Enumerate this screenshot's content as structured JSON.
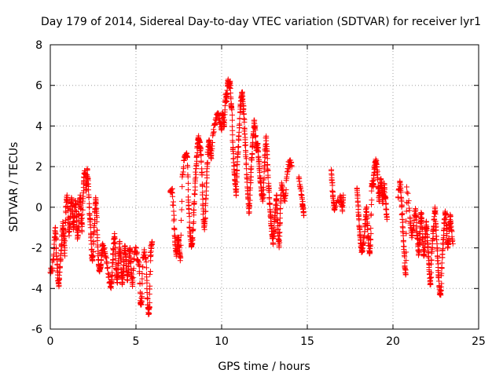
{
  "chart_data": {
    "type": "scatter",
    "title": "Day 179 of 2014, Sidereal Day-to-day VTEC variation (SDTVAR) for receiver lyr1",
    "xlabel": "GPS time / hours",
    "ylabel": "SDTVAR / TECUs",
    "xlim": [
      0,
      25
    ],
    "ylim": [
      -6,
      8
    ],
    "xticks": [
      0,
      5,
      10,
      15,
      20,
      25
    ],
    "yticks": [
      -6,
      -4,
      -2,
      0,
      2,
      4,
      6,
      8
    ],
    "grid": true,
    "marker": "plus",
    "color": "#ff0000",
    "trace": [
      [
        0.0,
        -3.2
      ],
      [
        0.1,
        -3.1
      ],
      [
        0.2,
        -2.4
      ],
      [
        0.25,
        -1.5
      ],
      [
        0.3,
        -1.0
      ],
      [
        0.35,
        -2.0
      ],
      [
        0.4,
        -2.8
      ],
      [
        0.45,
        -3.6
      ],
      [
        0.5,
        -3.9
      ],
      [
        0.55,
        -3.2
      ],
      [
        0.6,
        -2.6
      ],
      [
        0.65,
        -1.9
      ],
      [
        0.7,
        -1.2
      ],
      [
        0.75,
        -0.8
      ],
      [
        0.8,
        -1.6
      ],
      [
        0.85,
        -2.4
      ],
      [
        0.9,
        -0.2
      ],
      [
        0.95,
        0.5
      ],
      [
        1.0,
        0.3
      ],
      [
        1.05,
        -0.6
      ],
      [
        1.1,
        -1.4
      ],
      [
        1.15,
        -0.8
      ],
      [
        1.2,
        0.2
      ],
      [
        1.25,
        0.4
      ],
      [
        1.3,
        -0.3
      ],
      [
        1.35,
        -1.1
      ],
      [
        1.4,
        -0.5
      ],
      [
        1.45,
        0.3
      ],
      [
        1.5,
        0.1
      ],
      [
        1.55,
        -0.9
      ],
      [
        1.6,
        -1.5
      ],
      [
        1.65,
        -0.7
      ],
      [
        1.7,
        0.2
      ],
      [
        1.75,
        0.6
      ],
      [
        1.8,
        -0.4
      ],
      [
        1.85,
        -1.2
      ],
      [
        1.9,
        0.3
      ],
      [
        1.95,
        1.2
      ],
      [
        2.0,
        1.8
      ],
      [
        2.05,
        1.6
      ],
      [
        2.1,
        0.8
      ],
      [
        2.15,
        1.9
      ],
      [
        2.2,
        1.4
      ],
      [
        2.25,
        0.5
      ],
      [
        2.3,
        -0.4
      ],
      [
        2.35,
        -1.0
      ],
      [
        2.4,
        -2.1
      ],
      [
        2.45,
        -2.6
      ],
      [
        2.5,
        -2.2
      ],
      [
        2.55,
        -1.2
      ],
      [
        2.6,
        -0.2
      ],
      [
        2.65,
        0.4
      ],
      [
        2.7,
        -0.3
      ],
      [
        2.75,
        -1.5
      ],
      [
        2.8,
        -2.6
      ],
      [
        2.85,
        -3.1
      ],
      [
        2.9,
        -3.0
      ],
      [
        2.95,
        -2.8
      ],
      [
        3.0,
        -2.3
      ],
      [
        3.05,
        -1.9
      ],
      [
        3.15,
        -2.0
      ],
      [
        3.25,
        -2.5
      ],
      [
        3.35,
        -3.0
      ],
      [
        3.45,
        -3.7
      ],
      [
        3.55,
        -3.9
      ],
      [
        3.6,
        -3.4
      ],
      [
        3.65,
        -2.6
      ],
      [
        3.7,
        -1.8
      ],
      [
        3.75,
        -1.3
      ],
      [
        3.8,
        -2.2
      ],
      [
        3.85,
        -3.1
      ],
      [
        3.9,
        -3.7
      ],
      [
        3.95,
        -3.2
      ],
      [
        4.0,
        -2.4
      ],
      [
        4.05,
        -1.7
      ],
      [
        4.1,
        -2.5
      ],
      [
        4.15,
        -3.2
      ],
      [
        4.2,
        -3.8
      ],
      [
        4.25,
        -3.3
      ],
      [
        4.3,
        -2.6
      ],
      [
        4.35,
        -1.9
      ],
      [
        4.4,
        -2.3
      ],
      [
        4.45,
        -3.0
      ],
      [
        4.5,
        -3.6
      ],
      [
        4.55,
        -3.2
      ],
      [
        4.6,
        -2.4
      ],
      [
        4.65,
        -2.0
      ],
      [
        4.7,
        -2.7
      ],
      [
        4.75,
        -3.4
      ],
      [
        4.8,
        -3.8
      ],
      [
        4.9,
        -2.3
      ],
      [
        5.0,
        -2.0
      ],
      [
        5.1,
        -2.6
      ],
      [
        5.2,
        -2.9
      ],
      [
        5.25,
        -4.6
      ],
      [
        5.3,
        -4.8
      ],
      [
        5.35,
        -4.4
      ],
      [
        5.4,
        -2.5
      ],
      [
        5.5,
        -2.2
      ],
      [
        5.6,
        -2.7
      ],
      [
        5.65,
        -4.2
      ],
      [
        5.7,
        -5.0
      ],
      [
        5.75,
        -5.2
      ],
      [
        5.8,
        -4.7
      ],
      [
        5.85,
        -2.4
      ],
      [
        5.9,
        -1.9
      ],
      [
        5.95,
        -1.7
      ],
      [
        7.0,
        0.8
      ],
      [
        7.1,
        0.9
      ],
      [
        7.2,
        -0.2
      ],
      [
        7.25,
        -1.4
      ],
      [
        7.3,
        -1.9
      ],
      [
        7.35,
        -2.3
      ],
      [
        7.4,
        -2.1
      ],
      [
        7.45,
        -1.5
      ],
      [
        7.5,
        -1.6
      ],
      [
        7.55,
        -2.4
      ],
      [
        7.6,
        -2.5
      ],
      [
        7.7,
        1.5
      ],
      [
        7.8,
        2.3
      ],
      [
        7.9,
        2.6
      ],
      [
        8.0,
        2.5
      ],
      [
        8.05,
        0.5
      ],
      [
        8.1,
        -0.3
      ],
      [
        8.15,
        -1.2
      ],
      [
        8.2,
        -1.6
      ],
      [
        8.25,
        -1.9
      ],
      [
        8.3,
        -1.6
      ],
      [
        8.35,
        -0.8
      ],
      [
        8.4,
        0.2
      ],
      [
        8.45,
        1.0
      ],
      [
        8.5,
        1.9
      ],
      [
        8.55,
        2.5
      ],
      [
        8.6,
        3.1
      ],
      [
        8.65,
        3.4
      ],
      [
        8.7,
        3.2
      ],
      [
        8.75,
        2.9
      ],
      [
        8.8,
        2.6
      ],
      [
        8.85,
        1.6
      ],
      [
        8.9,
        0.4
      ],
      [
        8.95,
        -0.6
      ],
      [
        9.0,
        -1.1
      ],
      [
        9.05,
        -0.2
      ],
      [
        9.1,
        0.8
      ],
      [
        9.15,
        1.9
      ],
      [
        9.2,
        2.7
      ],
      [
        9.25,
        3.2
      ],
      [
        9.3,
        3.1
      ],
      [
        9.35,
        2.8
      ],
      [
        9.4,
        2.4
      ],
      [
        9.5,
        3.6
      ],
      [
        9.6,
        4.1
      ],
      [
        9.7,
        4.4
      ],
      [
        9.8,
        4.6
      ],
      [
        9.9,
        4.2
      ],
      [
        10.0,
        3.8
      ],
      [
        10.05,
        4.6
      ],
      [
        10.1,
        4.4
      ],
      [
        10.15,
        4.0
      ],
      [
        10.2,
        5.0
      ],
      [
        10.25,
        5.6
      ],
      [
        10.3,
        5.2
      ],
      [
        10.35,
        6.0
      ],
      [
        10.4,
        6.2
      ],
      [
        10.45,
        5.9
      ],
      [
        10.5,
        6.1
      ],
      [
        10.55,
        5.0
      ],
      [
        10.6,
        4.8
      ],
      [
        10.65,
        3.2
      ],
      [
        10.7,
        2.4
      ],
      [
        10.75,
        1.6
      ],
      [
        10.8,
        1.1
      ],
      [
        10.85,
        0.6
      ],
      [
        10.9,
        1.8
      ],
      [
        10.95,
        2.6
      ],
      [
        11.0,
        3.3
      ],
      [
        11.05,
        4.1
      ],
      [
        11.1,
        5.0
      ],
      [
        11.15,
        5.4
      ],
      [
        11.2,
        5.6
      ],
      [
        11.25,
        5.1
      ],
      [
        11.3,
        4.6
      ],
      [
        11.35,
        3.6
      ],
      [
        11.4,
        2.8
      ],
      [
        11.45,
        1.9
      ],
      [
        11.5,
        1.0
      ],
      [
        11.55,
        0.4
      ],
      [
        11.6,
        -0.3
      ],
      [
        11.65,
        0.6
      ],
      [
        11.7,
        1.5
      ],
      [
        11.75,
        2.4
      ],
      [
        11.8,
        3.0
      ],
      [
        11.85,
        3.6
      ],
      [
        11.9,
        4.2
      ],
      [
        11.95,
        3.9
      ],
      [
        12.0,
        3.2
      ],
      [
        12.05,
        2.8
      ],
      [
        12.1,
        3.1
      ],
      [
        12.15,
        2.5
      ],
      [
        12.2,
        1.9
      ],
      [
        12.25,
        1.4
      ],
      [
        12.3,
        1.0
      ],
      [
        12.35,
        0.6
      ],
      [
        12.4,
        0.3
      ],
      [
        12.45,
        1.2
      ],
      [
        12.5,
        2.2
      ],
      [
        12.55,
        2.9
      ],
      [
        12.6,
        3.5
      ],
      [
        12.65,
        2.6
      ],
      [
        12.7,
        1.8
      ],
      [
        12.75,
        0.9
      ],
      [
        12.8,
        0.2
      ],
      [
        12.85,
        -0.4
      ],
      [
        12.9,
        -0.9
      ],
      [
        12.95,
        -1.4
      ],
      [
        13.0,
        -1.8
      ],
      [
        13.05,
        -1.2
      ],
      [
        13.1,
        -0.6
      ],
      [
        13.15,
        0.0
      ],
      [
        13.2,
        0.6
      ],
      [
        13.25,
        -0.6
      ],
      [
        13.3,
        -1.4
      ],
      [
        13.35,
        -1.9
      ],
      [
        13.4,
        -0.8
      ],
      [
        13.45,
        0.3
      ],
      [
        13.5,
        1.2
      ],
      [
        13.6,
        0.6
      ],
      [
        13.7,
        0.3
      ],
      [
        13.8,
        1.5
      ],
      [
        13.9,
        2.1
      ],
      [
        14.0,
        2.2
      ],
      [
        14.1,
        2.0
      ],
      [
        14.5,
        1.4
      ],
      [
        14.6,
        0.9
      ],
      [
        14.7,
        0.4
      ],
      [
        14.75,
        -0.1
      ],
      [
        14.8,
        -0.4
      ],
      [
        16.4,
        1.8
      ],
      [
        16.45,
        1.2
      ],
      [
        16.5,
        0.6
      ],
      [
        16.55,
        0.2
      ],
      [
        16.6,
        -0.1
      ],
      [
        16.9,
        0.5
      ],
      [
        17.0,
        0.3
      ],
      [
        17.05,
        -0.2
      ],
      [
        17.1,
        0.6
      ],
      [
        17.9,
        0.9
      ],
      [
        17.95,
        0.3
      ],
      [
        18.0,
        -0.4
      ],
      [
        18.05,
        -1.0
      ],
      [
        18.1,
        -1.6
      ],
      [
        18.15,
        -2.0
      ],
      [
        18.2,
        -2.2
      ],
      [
        18.25,
        -1.8
      ],
      [
        18.35,
        -1.2
      ],
      [
        18.4,
        -0.6
      ],
      [
        18.45,
        0.0
      ],
      [
        18.5,
        -0.8
      ],
      [
        18.55,
        -1.4
      ],
      [
        18.6,
        -1.9
      ],
      [
        18.65,
        -2.2
      ],
      [
        18.7,
        -1.6
      ],
      [
        18.75,
        0.8
      ],
      [
        18.8,
        1.3
      ],
      [
        18.85,
        1.0
      ],
      [
        18.9,
        1.7
      ],
      [
        18.95,
        2.0
      ],
      [
        19.0,
        2.3
      ],
      [
        19.05,
        2.1
      ],
      [
        19.1,
        1.6
      ],
      [
        19.15,
        0.9
      ],
      [
        19.2,
        0.3
      ],
      [
        19.25,
        0.8
      ],
      [
        19.3,
        1.4
      ],
      [
        19.35,
        0.9
      ],
      [
        19.4,
        0.2
      ],
      [
        19.45,
        0.6
      ],
      [
        19.5,
        1.1
      ],
      [
        19.55,
        0.5
      ],
      [
        19.6,
        -0.1
      ],
      [
        19.65,
        -0.6
      ],
      [
        20.3,
        0.5
      ],
      [
        20.4,
        1.2
      ],
      [
        20.45,
        0.9
      ],
      [
        20.5,
        0.3
      ],
      [
        20.55,
        -0.6
      ],
      [
        20.6,
        -1.4
      ],
      [
        20.65,
        -2.2
      ],
      [
        20.7,
        -3.0
      ],
      [
        20.75,
        -3.3
      ],
      [
        20.8,
        1.0
      ],
      [
        21.0,
        -0.5
      ],
      [
        21.05,
        -1.0
      ],
      [
        21.1,
        -1.5
      ],
      [
        21.2,
        -0.9
      ],
      [
        21.3,
        -0.2
      ],
      [
        21.35,
        -0.5
      ],
      [
        21.4,
        -1.2
      ],
      [
        21.45,
        -1.8
      ],
      [
        21.5,
        -2.3
      ],
      [
        21.55,
        -1.6
      ],
      [
        21.6,
        -0.8
      ],
      [
        21.65,
        -0.3
      ],
      [
        21.7,
        -1.0
      ],
      [
        21.75,
        -1.7
      ],
      [
        21.8,
        -2.4
      ],
      [
        21.85,
        -2.0
      ],
      [
        21.9,
        -1.3
      ],
      [
        21.95,
        -0.7
      ],
      [
        22.0,
        -1.5
      ],
      [
        22.05,
        -2.2
      ],
      [
        22.1,
        -2.8
      ],
      [
        22.15,
        -3.5
      ],
      [
        22.2,
        -3.8
      ],
      [
        22.25,
        -2.6
      ],
      [
        22.3,
        -1.8
      ],
      [
        22.35,
        -1.2
      ],
      [
        22.4,
        -0.6
      ],
      [
        22.45,
        0.0
      ],
      [
        22.5,
        -0.8
      ],
      [
        22.55,
        -1.6
      ],
      [
        22.6,
        -2.4
      ],
      [
        22.65,
        -3.2
      ],
      [
        22.7,
        -3.9
      ],
      [
        22.75,
        -4.3
      ],
      [
        22.8,
        -4.1
      ],
      [
        22.85,
        -3.0
      ],
      [
        22.9,
        -2.1
      ],
      [
        22.95,
        -1.5
      ],
      [
        23.0,
        -0.8
      ],
      [
        23.05,
        -0.2
      ],
      [
        23.1,
        -0.5
      ],
      [
        23.15,
        -1.3
      ],
      [
        23.2,
        -2.0
      ],
      [
        23.25,
        -1.6
      ],
      [
        23.3,
        -0.9
      ],
      [
        23.35,
        -0.4
      ],
      [
        23.4,
        -1.1
      ],
      [
        23.5,
        -1.8
      ]
    ]
  }
}
